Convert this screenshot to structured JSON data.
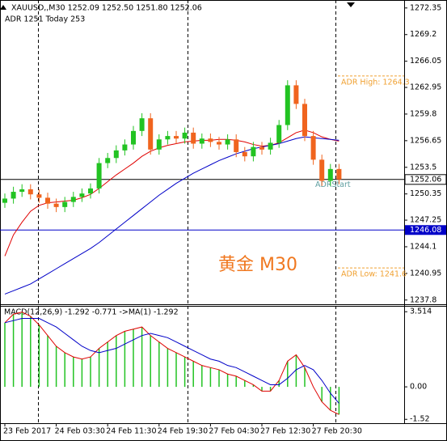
{
  "chart_data": [
    {
      "type": "candlestick",
      "title": "XAUUSD,,M30  1252.09 1252.50 1251.80 1252.06",
      "subtitle": "ADR 1251  Today 253",
      "watermark": "黄金 M30",
      "categories": [
        "23 Feb 2017",
        null,
        null,
        null,
        null,
        null,
        "24 Feb 03:30",
        null,
        null,
        null,
        null,
        null,
        "24 Feb 11:30",
        null,
        null,
        null,
        null,
        null,
        "24 Feb 19:30",
        null,
        null,
        null,
        null,
        null,
        "27 Feb 04:30",
        null,
        null,
        null,
        null,
        null,
        "27 Feb 12:30",
        null,
        null,
        null,
        null,
        null,
        "27 Feb 20:30",
        null,
        null,
        null
      ],
      "open": [
        1249.3,
        1249.8,
        1250.6,
        1250.9,
        1250.3,
        1249.9,
        1249.2,
        1248.8,
        1249.4,
        1250.0,
        1250.4,
        1251.0,
        1254.0,
        1254.6,
        1255.5,
        1256.2,
        1257.8,
        1259.3,
        1255.6,
        1256.8,
        1257.2,
        1256.9,
        1257.6,
        1256.3,
        1256.9,
        1256.5,
        1256.2,
        1256.8,
        1255.3,
        1254.8,
        1255.9,
        1255.6,
        1256.4,
        1258.5,
        1263.2,
        1261.0,
        1257.2,
        1254.4,
        1251.9,
        1253.3
      ],
      "high": [
        1250.4,
        1251.2,
        1251.5,
        1251.5,
        1250.9,
        1250.5,
        1249.8,
        1250.0,
        1250.6,
        1251.0,
        1251.6,
        1254.6,
        1255.2,
        1256.1,
        1256.8,
        1258.4,
        1259.9,
        1259.9,
        1257.4,
        1257.8,
        1257.8,
        1258.2,
        1258.2,
        1257.5,
        1257.5,
        1257.1,
        1257.4,
        1257.4,
        1255.9,
        1256.5,
        1256.5,
        1257.0,
        1259.1,
        1263.8,
        1263.8,
        1261.6,
        1257.8,
        1255.0,
        1253.9,
        1253.9
      ],
      "low": [
        1248.7,
        1249.2,
        1250.0,
        1249.7,
        1249.3,
        1248.6,
        1248.2,
        1248.2,
        1248.8,
        1249.4,
        1249.8,
        1250.4,
        1253.4,
        1254.0,
        1254.9,
        1255.6,
        1257.2,
        1255.0,
        1255.0,
        1256.2,
        1256.3,
        1256.3,
        1255.7,
        1255.7,
        1255.9,
        1255.6,
        1255.6,
        1254.7,
        1254.2,
        1254.2,
        1255.0,
        1255.0,
        1255.8,
        1257.9,
        1260.4,
        1256.6,
        1253.8,
        1251.3,
        1251.3,
        1251.5
      ],
      "close": [
        1249.8,
        1250.6,
        1250.9,
        1250.3,
        1249.9,
        1249.2,
        1248.8,
        1249.4,
        1250.0,
        1250.4,
        1251.0,
        1254.0,
        1254.6,
        1255.5,
        1256.2,
        1257.8,
        1259.3,
        1255.6,
        1256.8,
        1257.2,
        1256.9,
        1257.6,
        1256.3,
        1256.9,
        1256.5,
        1256.2,
        1256.8,
        1255.3,
        1254.8,
        1255.9,
        1255.6,
        1256.4,
        1258.5,
        1263.2,
        1261.0,
        1257.2,
        1254.4,
        1251.9,
        1253.3,
        1252.06
      ],
      "up_color": "#22c322",
      "down_color": "#f0641e",
      "lines": [
        {
          "color": "#e00000",
          "values": [
            1243.0,
            1245.5,
            1247.0,
            1248.3,
            1249.0,
            1249.3,
            1249.4,
            1249.5,
            1249.6,
            1249.9,
            1250.3,
            1251.0,
            1251.8,
            1252.6,
            1253.3,
            1254.0,
            1254.8,
            1255.4,
            1255.8,
            1256.1,
            1256.3,
            1256.5,
            1256.6,
            1256.7,
            1256.7,
            1256.8,
            1256.8,
            1256.7,
            1256.5,
            1256.2,
            1256.0,
            1256.1,
            1256.4,
            1257.0,
            1257.6,
            1257.9,
            1257.6,
            1257.1,
            1256.8,
            1256.6
          ]
        },
        {
          "color": "#0000c8",
          "values": [
            1238.5,
            1238.9,
            1239.3,
            1239.7,
            1240.3,
            1240.9,
            1241.5,
            1242.1,
            1242.7,
            1243.3,
            1243.9,
            1244.6,
            1245.4,
            1246.2,
            1247.0,
            1247.8,
            1248.6,
            1249.4,
            1250.2,
            1250.9,
            1251.6,
            1252.2,
            1252.8,
            1253.3,
            1253.8,
            1254.3,
            1254.7,
            1255.1,
            1255.4,
            1255.7,
            1255.9,
            1256.1,
            1256.3,
            1256.6,
            1256.9,
            1257.1,
            1257.0,
            1256.9,
            1256.8,
            1256.7
          ]
        }
      ],
      "ylim": [
        1237.3,
        1273.1
      ],
      "yticks": [
        1272.35,
        1269.2,
        1266.05,
        1262.95,
        1259.8,
        1256.65,
        1253.5,
        1250.35,
        1247.25,
        1244.1,
        1240.95,
        1237.8
      ],
      "bid_line": 1252.06,
      "level_line": 1246.08,
      "adr_high": {
        "value": 1264.3,
        "label": "ADR High: 1264.3"
      },
      "adr_low": {
        "value": 1241.6,
        "label": "ADR Low: 1241.6"
      },
      "adr_start": {
        "value": 1252.0,
        "label": "ADRStart"
      }
    },
    {
      "type": "macd",
      "title": "MACD(12,26,9) -1.292 -0.771  ->MA(1) -1.292",
      "histogram": {
        "color": "#22c322",
        "values": [
          3.0,
          3.4,
          3.5,
          3.3,
          2.9,
          2.4,
          1.9,
          1.6,
          1.4,
          1.3,
          1.4,
          1.8,
          2.1,
          2.4,
          2.6,
          2.7,
          2.8,
          2.4,
          2.1,
          1.8,
          1.6,
          1.4,
          1.2,
          1.0,
          0.9,
          0.8,
          0.6,
          0.5,
          0.3,
          0.1,
          -0.2,
          -0.2,
          0.3,
          1.2,
          1.5,
          0.9,
          0.0,
          -0.7,
          -1.1,
          -1.292
        ]
      },
      "ma_color": "#e00000",
      "signal": {
        "color": "#0000c8",
        "values": [
          3.0,
          3.1,
          3.2,
          3.2,
          3.2,
          3.0,
          2.8,
          2.5,
          2.2,
          1.9,
          1.7,
          1.6,
          1.7,
          1.8,
          2.0,
          2.2,
          2.4,
          2.5,
          2.4,
          2.3,
          2.1,
          1.9,
          1.7,
          1.5,
          1.3,
          1.2,
          1.0,
          0.9,
          0.7,
          0.5,
          0.3,
          0.1,
          0.1,
          0.4,
          0.8,
          1.0,
          0.8,
          0.3,
          -0.3,
          -0.771
        ]
      },
      "ylim": [
        -1.7,
        3.75
      ],
      "yticks": [
        3.514,
        {
          "value": 0,
          "label": "0.00"
        },
        -1.52
      ]
    }
  ]
}
